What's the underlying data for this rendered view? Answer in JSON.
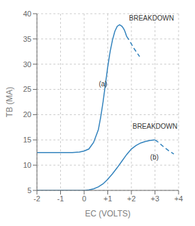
{
  "chart_data": {
    "type": "line",
    "xlabel": "EC (VOLTS)",
    "ylabel": "TB (MA)",
    "xlim": [
      -2,
      4
    ],
    "ylim": [
      5,
      40
    ],
    "xticks": [
      -2,
      -1,
      0,
      {
        "value": 1,
        "label": "+1"
      },
      {
        "value": 2,
        "label": "+2"
      },
      {
        "value": 3,
        "label": "+3"
      },
      {
        "value": 4,
        "label": "+4"
      }
    ],
    "yticks": [
      5,
      10,
      15,
      20,
      25,
      30,
      35,
      40
    ],
    "grid": true,
    "series": [
      {
        "line_style": "solid",
        "x": [
          -2.0,
          -1.8,
          -1.5,
          -1.2,
          -1.0,
          -0.8,
          -0.5,
          -0.2,
          0.0,
          0.2,
          0.4,
          0.6,
          0.7,
          0.8,
          0.9,
          1.0,
          1.1,
          1.2,
          1.3,
          1.4,
          1.5,
          1.6,
          1.65,
          1.7,
          1.75,
          1.8
        ],
        "values": [
          12.5,
          12.5,
          12.5,
          12.5,
          12.5,
          12.5,
          12.5,
          12.6,
          12.8,
          13.2,
          14.5,
          17.0,
          19.5,
          22.5,
          26.0,
          29.5,
          32.5,
          34.8,
          36.5,
          37.5,
          37.8,
          37.5,
          37.2,
          36.8,
          36.2,
          35.5
        ]
      },
      {
        "line_style": "dashed",
        "x": [
          1.8,
          1.9,
          2.0,
          2.1,
          2.2,
          2.35
        ],
        "values": [
          35.5,
          34.8,
          34.0,
          33.2,
          32.5,
          31.5
        ]
      },
      {
        "line_style": "solid",
        "x": [
          -2.0,
          -1.5,
          -1.0,
          -0.5,
          0.0,
          0.2,
          0.4,
          0.6,
          0.8,
          1.0,
          1.2,
          1.4,
          1.6,
          1.8,
          2.0,
          2.2,
          2.4,
          2.6,
          2.8,
          3.0
        ],
        "values": [
          5.0,
          5.0,
          5.0,
          5.0,
          5.0,
          5.1,
          5.3,
          5.7,
          6.3,
          7.2,
          8.3,
          9.5,
          10.8,
          12.1,
          13.2,
          13.9,
          14.4,
          14.7,
          14.9,
          15.0
        ]
      },
      {
        "line_style": "dashed",
        "x": [
          3.0,
          3.1,
          3.2,
          3.4,
          3.6,
          3.8
        ],
        "values": [
          15.0,
          14.7,
          14.3,
          13.5,
          12.8,
          12.2
        ]
      }
    ],
    "annotations": [
      {
        "text": "(a)",
        "x": 0.62,
        "y": 26.0
      },
      {
        "text": "(b)",
        "x": 2.8,
        "y": 11.5
      },
      {
        "text": "BREAKDOWN",
        "x": 1.9,
        "y": 39.0
      },
      {
        "text": "BREAKDOWN",
        "x": 2.05,
        "y": 17.5
      }
    ]
  }
}
